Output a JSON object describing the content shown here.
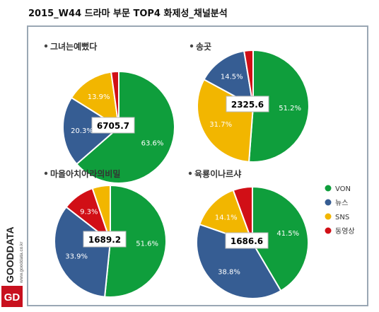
{
  "page_title": "2015_W44 드라마 부문 TOP4 화제성_채널분석",
  "brand": {
    "logo_text": "GOODDATA",
    "logo_initials": "GD",
    "url_text": "www.gooddata.co.kr"
  },
  "legend": {
    "items": [
      {
        "label": "VON",
        "color": "#0f9e3c"
      },
      {
        "label": "뉴스",
        "color": "#365d93"
      },
      {
        "label": "SNS",
        "color": "#f2b600"
      },
      {
        "label": "동영상",
        "color": "#d10f16"
      }
    ]
  },
  "chart_data": [
    {
      "type": "pie",
      "title": "그녀는예뻤다",
      "total_label": "6705.7",
      "slices": [
        {
          "category": "VON",
          "value": 63.6,
          "label": "63.6%"
        },
        {
          "category": "뉴스",
          "value": 20.3,
          "label": "20.3%"
        },
        {
          "category": "SNS",
          "value": 13.9,
          "label": "13.9%"
        },
        {
          "category": "동영상",
          "value": 2.2,
          "label": ""
        }
      ]
    },
    {
      "type": "pie",
      "title": "송곳",
      "total_label": "2325.6",
      "slices": [
        {
          "category": "VON",
          "value": 51.2,
          "label": "51.2%"
        },
        {
          "category": "SNS",
          "value": 31.7,
          "label": "31.7%"
        },
        {
          "category": "뉴스",
          "value": 14.5,
          "label": "14.5%"
        },
        {
          "category": "동영상",
          "value": 2.6,
          "label": ""
        }
      ]
    },
    {
      "type": "pie",
      "title": "마을아치아라의비밀",
      "total_label": "1689.2",
      "slices": [
        {
          "category": "VON",
          "value": 51.6,
          "label": "51.6%"
        },
        {
          "category": "뉴스",
          "value": 33.9,
          "label": "33.9%"
        },
        {
          "category": "동영상",
          "value": 9.3,
          "label": "9.3%"
        },
        {
          "category": "SNS",
          "value": 5.2,
          "label": ""
        }
      ]
    },
    {
      "type": "pie",
      "title": "육룡이나르샤",
      "total_label": "1686.6",
      "slices": [
        {
          "category": "VON",
          "value": 41.5,
          "label": "41.5%"
        },
        {
          "category": "뉴스",
          "value": 38.8,
          "label": "38.8%"
        },
        {
          "category": "SNS",
          "value": 14.1,
          "label": "14.1%"
        },
        {
          "category": "동영상",
          "value": 5.6,
          "label": ""
        }
      ]
    }
  ]
}
